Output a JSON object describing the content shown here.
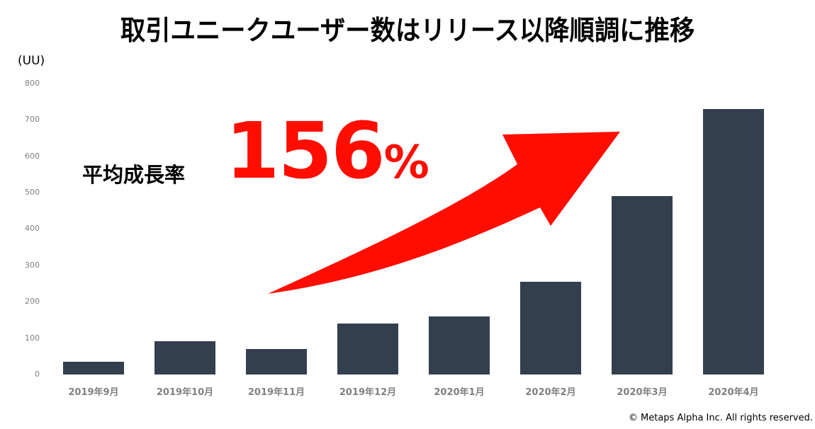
{
  "title": "取引ユニークユーザー数はリリース以降順調に推移",
  "unit_label": "(UU)",
  "highlight": {
    "label": "平均成長率",
    "value": "156",
    "percent_sign": "%"
  },
  "copyright": "© Metaps Alpha Inc. All rights reserved.",
  "colors": {
    "bar": "#333f4f",
    "highlight": "#ff0d00",
    "tick_text": "#808080"
  },
  "axis": {
    "y_ticks": [
      "800",
      "700",
      "600",
      "500",
      "400",
      "300",
      "200",
      "100",
      "0"
    ]
  },
  "chart_data": {
    "type": "bar",
    "title": "取引ユニークユーザー数はリリース以降順調に推移",
    "xlabel": "",
    "ylabel": "(UU)",
    "ylim": [
      0,
      800
    ],
    "y_ticks": [
      0,
      100,
      200,
      300,
      400,
      500,
      600,
      700,
      800
    ],
    "grid": false,
    "legend": null,
    "categories": [
      "2019年9月",
      "2019年10月",
      "2019年11月",
      "2019年12月",
      "2020年1月",
      "2020年2月",
      "2020年3月",
      "2020年4月"
    ],
    "values": [
      35,
      91,
      70,
      140,
      160,
      255,
      490,
      730
    ],
    "annotations": [
      {
        "text": "平均成長率 156%",
        "type": "callout"
      },
      {
        "type": "arrow",
        "direction": "up-right",
        "color": "#ff0d00"
      }
    ]
  }
}
